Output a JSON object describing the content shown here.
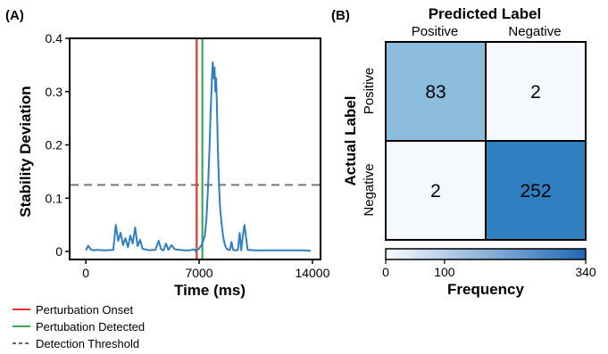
{
  "panel_a": {
    "label": "(A)",
    "chart_data": {
      "type": "line",
      "xlabel": "Time (ms)",
      "ylabel": "Stability Deviation",
      "xlim": [
        -1000,
        14500
      ],
      "ylim": [
        -0.015,
        0.4
      ],
      "xticks": [
        0,
        7000,
        14000
      ],
      "xtick_labels": [
        "0",
        "7000",
        "14000"
      ],
      "yticks": [
        0,
        0.1,
        0.2,
        0.3,
        0.4
      ],
      "ytick_labels": [
        "0",
        "0.1",
        "0.2",
        "0.3",
        "0.4"
      ],
      "grid": false,
      "series": [
        {
          "color": "#2f7fc1",
          "x": [
            0,
            150,
            300,
            450,
            700,
            1200,
            1700,
            1850,
            2000,
            2150,
            2300,
            2450,
            2600,
            2750,
            2900,
            3050,
            3200,
            3350,
            3500,
            3650,
            3800,
            3950,
            4100,
            4300,
            4500,
            4650,
            4800,
            4950,
            5100,
            5300,
            5500,
            5800,
            6100,
            6400,
            6700,
            6800,
            6900,
            7000,
            7050,
            7150,
            7250,
            7350,
            7450,
            7550,
            7650,
            7700,
            7750,
            7800,
            7850,
            7900,
            7950,
            8000,
            8050,
            8100,
            8150,
            8200,
            8250,
            8300,
            8400,
            8500,
            8600,
            8700,
            8800,
            8900,
            9000,
            9100,
            9200,
            9300,
            9400,
            9500,
            9600,
            9700,
            9800,
            10000,
            10500,
            11000,
            11500,
            12000,
            12500,
            13000,
            13500,
            13900
          ],
          "y": [
            0.002,
            0.011,
            0.004,
            0.002,
            0.003,
            0.002,
            0.003,
            0.05,
            0.02,
            0.035,
            0.012,
            0.025,
            0.008,
            0.03,
            0.015,
            0.045,
            0.01,
            0.022,
            0.005,
            0.004,
            0.003,
            0.002,
            0.003,
            0.003,
            0.02,
            0.004,
            0.002,
            0.015,
            0.003,
            0.012,
            0.004,
            0.003,
            0.002,
            0.002,
            0.004,
            0.0,
            0.003,
            0.005,
            0.008,
            0.012,
            0.02,
            0.03,
            0.06,
            0.12,
            0.2,
            0.25,
            0.29,
            0.33,
            0.355,
            0.325,
            0.345,
            0.3,
            0.325,
            0.27,
            0.2,
            0.15,
            0.11,
            0.08,
            0.05,
            0.025,
            0.012,
            0.005,
            0.003,
            0.003,
            0.018,
            0.003,
            0.002,
            0.002,
            0.003,
            0.035,
            0.002,
            0.03,
            0.05,
            0.003,
            0.002,
            0.002,
            0.002,
            0.002,
            0.002,
            0.002,
            0.002,
            0.001
          ]
        }
      ],
      "onset_x": 6850,
      "detected_x": 7200,
      "threshold_y": 0.125,
      "onset_color": "#e8322b",
      "detected_color": "#3aa655",
      "threshold_color": "#777777"
    },
    "legend": [
      {
        "label": "Perturbation Onset",
        "color": "#e8322b",
        "style": "solid"
      },
      {
        "label": "Pertubation Detected",
        "color": "#3aa655",
        "style": "solid"
      },
      {
        "label": "Detection Threshold",
        "color": "#666666",
        "style": "dashed"
      }
    ]
  },
  "panel_b": {
    "label": "(B)",
    "chart_data": {
      "type": "heatmap",
      "title": "Predicted Label",
      "ylabel": "Actual Label",
      "col_labels": [
        "Positive",
        "Negative"
      ],
      "row_labels": [
        "Positive",
        "Negative"
      ],
      "values": [
        [
          83,
          2
        ],
        [
          2,
          252
        ]
      ],
      "cell_colors": [
        [
          "#8dbddd",
          "#f5f9fe"
        ],
        [
          "#f5f9fe",
          "#2f7fc1"
        ]
      ],
      "colorbar": {
        "label": "Frequency",
        "min": 0,
        "max": 340,
        "ticks": [
          0,
          100,
          340
        ],
        "tick_labels": [
          "0",
          "100",
          "340"
        ],
        "color_low": "#f7fbff",
        "color_high": "#1f69b3"
      }
    }
  }
}
